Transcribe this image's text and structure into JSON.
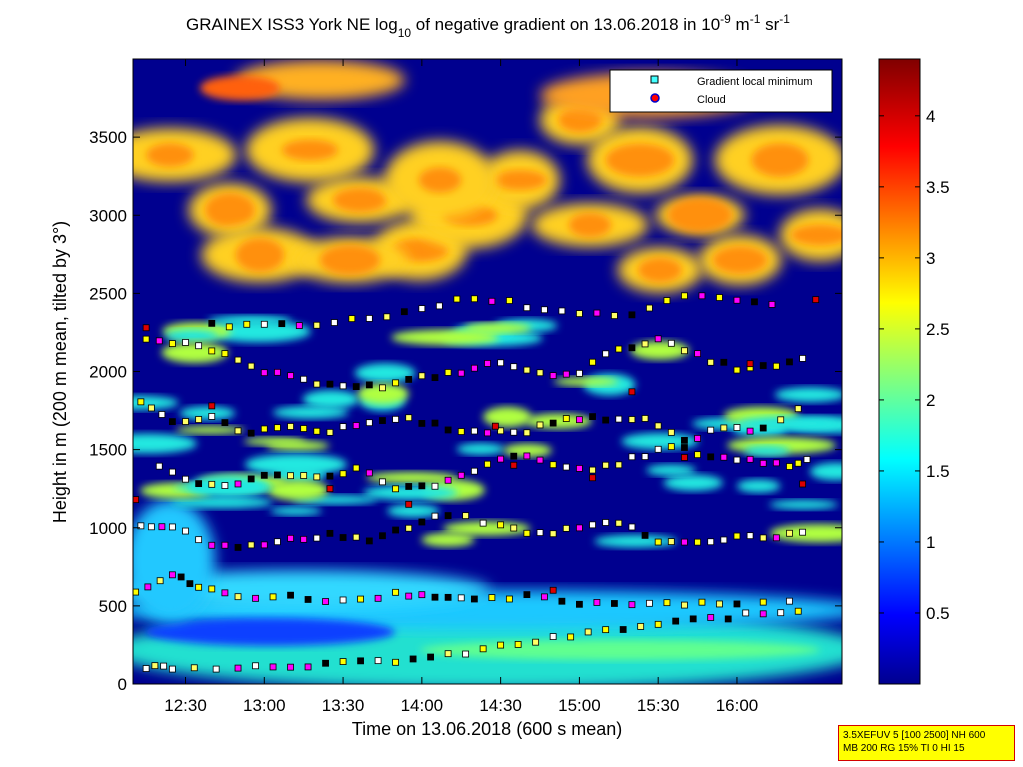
{
  "chart_data": {
    "type": "heatmap",
    "title_parts": [
      "GRAINEX ISS3 York NE log",
      "10",
      " of negative gradient on 13.06.2018 in 10",
      "-9",
      " m",
      "-1",
      " sr",
      "-1"
    ],
    "xlabel": "Time on 13.06.2018 (600 s mean)",
    "ylabel": "Height in m (200 m mean, tilted by 3°)",
    "x_ticks": [
      "12:30",
      "13:00",
      "13:30",
      "14:00",
      "14:30",
      "15:00",
      "15:30",
      "16:00"
    ],
    "x_tick_minutes": [
      750,
      780,
      810,
      840,
      870,
      900,
      930,
      960
    ],
    "xlim_minutes": [
      730,
      1000
    ],
    "y_ticks": [
      0,
      500,
      1000,
      1500,
      2000,
      2500,
      3000,
      3500
    ],
    "ylim": [
      0,
      4000
    ],
    "colorbar": {
      "ticks": [
        0.5,
        1,
        1.5,
        2,
        2.5,
        3,
        3.5,
        4
      ],
      "lim": [
        0,
        4.4
      ],
      "colormap": "jet"
    },
    "legend": {
      "position": "top-right",
      "entries": [
        "Gradient local minimum",
        "Cloud"
      ]
    },
    "series": [
      {
        "name": "Gradient local minimum",
        "marker": "square",
        "color": "#44ffff",
        "layers": [
          {
            "points": [
              [
                731,
                600
              ],
              [
                745,
                700
              ],
              [
                755,
                620
              ],
              [
                770,
                560
              ],
              [
                790,
                560
              ],
              [
                810,
                530
              ],
              [
                830,
                580
              ],
              [
                845,
                570
              ],
              [
                860,
                530
              ],
              [
                880,
                560
              ],
              [
                900,
                520
              ],
              [
                920,
                520
              ],
              [
                940,
                520
              ],
              [
                960,
                520
              ],
              [
                990,
                520
              ]
            ]
          },
          {
            "points": [
              [
                735,
                110
              ],
              [
                745,
                110
              ],
              [
                770,
                110
              ],
              [
                790,
                120
              ],
              [
                810,
                130
              ],
              [
                830,
                150
              ],
              [
                850,
                180
              ],
              [
                870,
                240
              ],
              [
                890,
                290
              ],
              [
                910,
                340
              ],
              [
                930,
                380
              ],
              [
                950,
                420
              ],
              [
                970,
                450
              ],
              [
                990,
                480
              ]
            ]
          },
          {
            "points": [
              [
                733,
                1020
              ],
              [
                745,
                1010
              ],
              [
                760,
                900
              ],
              [
                775,
                880
              ],
              [
                790,
                920
              ],
              [
                805,
                960
              ],
              [
                820,
                920
              ],
              [
                835,
                1000
              ],
              [
                850,
                1090
              ],
              [
                870,
                1010
              ],
              [
                885,
                960
              ],
              [
                900,
                1000
              ],
              [
                915,
                1040
              ],
              [
                930,
                920
              ],
              [
                945,
                900
              ],
              [
                960,
                950
              ],
              [
                975,
                940
              ],
              [
                990,
                1000
              ]
            ]
          },
          {
            "points": [
              [
                740,
                1380
              ],
              [
                755,
                1280
              ],
              [
                770,
                1280
              ],
              [
                785,
                1350
              ],
              [
                800,
                1320
              ],
              [
                815,
                1380
              ],
              [
                830,
                1260
              ],
              [
                845,
                1260
              ],
              [
                860,
                1360
              ],
              [
                875,
                1470
              ],
              [
                890,
                1400
              ],
              [
                905,
                1370
              ],
              [
                920,
                1440
              ],
              [
                935,
                1520
              ],
              [
                950,
                1460
              ],
              [
                965,
                1430
              ],
              [
                980,
                1400
              ],
              [
                990,
                1450
              ]
            ]
          },
          {
            "points": [
              [
                733,
                1820
              ],
              [
                745,
                1680
              ],
              [
                760,
                1700
              ],
              [
                775,
                1600
              ],
              [
                790,
                1660
              ],
              [
                805,
                1610
              ],
              [
                820,
                1680
              ],
              [
                835,
                1700
              ],
              [
                850,
                1640
              ],
              [
                865,
                1600
              ],
              [
                880,
                1620
              ],
              [
                895,
                1700
              ],
              [
                910,
                1700
              ],
              [
                925,
                1700
              ],
              [
                940,
                1550
              ],
              [
                955,
                1640
              ],
              [
                970,
                1630
              ],
              [
                990,
                1840
              ]
            ]
          },
          {
            "points": [
              [
                735,
                2220
              ],
              [
                750,
                2180
              ],
              [
                765,
                2100
              ],
              [
                780,
                2000
              ],
              [
                795,
                1940
              ],
              [
                810,
                1920
              ],
              [
                825,
                1900
              ],
              [
                840,
                1960
              ],
              [
                855,
                2000
              ],
              [
                870,
                2060
              ],
              [
                885,
                1980
              ],
              [
                900,
                2000
              ],
              [
                915,
                2150
              ],
              [
                930,
                2200
              ],
              [
                945,
                2100
              ],
              [
                960,
                2020
              ],
              [
                975,
                2030
              ],
              [
                990,
                2100
              ]
            ]
          },
          {
            "points": [
              [
                760,
                2300
              ],
              [
                780,
                2290
              ],
              [
                800,
                2300
              ],
              [
                820,
                2340
              ],
              [
                840,
                2400
              ],
              [
                860,
                2480
              ],
              [
                880,
                2420
              ],
              [
                900,
                2380
              ],
              [
                920,
                2360
              ],
              [
                940,
                2480
              ],
              [
                960,
                2450
              ],
              [
                980,
                2420
              ]
            ]
          }
        ]
      },
      {
        "name": "Cloud",
        "marker": "circle",
        "color": "#ff0000",
        "points": [
          [
            731,
            1180
          ],
          [
            735,
            2280
          ],
          [
            760,
            1780
          ],
          [
            805,
            1250
          ],
          [
            835,
            1150
          ],
          [
            868,
            1650
          ],
          [
            875,
            1400
          ],
          [
            890,
            600
          ],
          [
            905,
            1320
          ],
          [
            920,
            1870
          ],
          [
            940,
            1450
          ],
          [
            965,
            2050
          ],
          [
            985,
            1280
          ],
          [
            990,
            2460
          ]
        ]
      }
    ]
  },
  "info_box": {
    "line1": "3.5XEFUV 5 [100 2500] NH 600",
    "line2": "MB 200 RG 15% TI 0 HI 15"
  }
}
